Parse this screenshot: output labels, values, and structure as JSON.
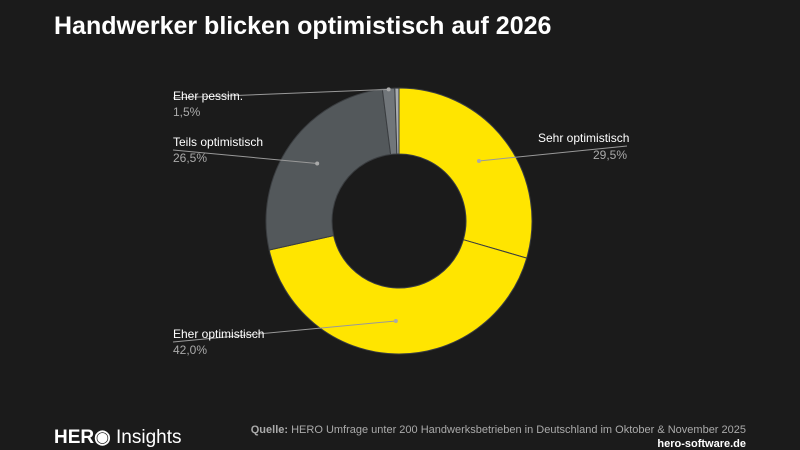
{
  "title": "Handwerker blicken optimistisch auf 2026",
  "chart_data": {
    "type": "pie",
    "donut": true,
    "title": "Handwerker blicken optimistisch auf 2026",
    "slices": [
      {
        "label": "Sehr optimistisch",
        "value": 29.5,
        "display": "29,5%",
        "color": "#FFE500"
      },
      {
        "label": "Eher optimistisch",
        "value": 42.0,
        "display": "42,0%",
        "color": "#FFE500"
      },
      {
        "label": "Teils optimistisch",
        "value": 26.5,
        "display": "26,5%",
        "color": "#53585B"
      },
      {
        "label": "Eher pessim.",
        "value": 1.5,
        "display": "1,5%",
        "color": "#71767A"
      },
      {
        "label": "",
        "value": 0.5,
        "display": "",
        "color": "#A9ADB0"
      }
    ]
  },
  "footer": {
    "brand": "HER",
    "brand_suffix": "Insights",
    "source_label": "Quelle:",
    "source": "HERO Umfrage unter 200 Handwerksbetrieben in Deutschland im Oktober & November 2025",
    "website": "hero-software.de"
  }
}
